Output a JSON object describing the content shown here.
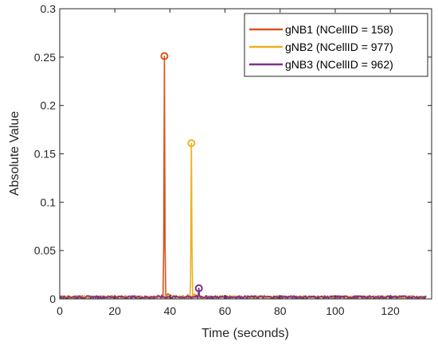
{
  "chart_data": {
    "type": "line",
    "xlabel": "Time (seconds)",
    "ylabel": "Absolute Value",
    "xlim": [
      0,
      135
    ],
    "ylim": [
      0,
      0.3
    ],
    "x_ticks": [
      0,
      20,
      40,
      60,
      80,
      100,
      120
    ],
    "y_ticks": [
      0,
      0.05,
      0.1,
      0.15,
      0.2,
      0.25,
      0.3
    ],
    "y_tick_labels": [
      "0",
      "0.05",
      "0.1",
      "0.15",
      "0.2",
      "0.25",
      "0.3"
    ],
    "grid": false,
    "legend_position": "top-right",
    "series": [
      {
        "name": "gNB1 (NCellID = 158)",
        "color": "#D95319",
        "x_range": [
          0,
          133
        ],
        "baseline": 0.002,
        "peak_x": 38.0,
        "peak_y": 0.251,
        "peak_marker": true
      },
      {
        "name": "gNB2 (NCellID = 977)",
        "color": "#EDB120",
        "x_range": [
          0,
          133
        ],
        "baseline": 0.002,
        "peak_x": 47.8,
        "peak_y": 0.161,
        "peak_marker": true
      },
      {
        "name": "gNB3 (NCellID = 962)",
        "color": "#7E2F8E",
        "x_range": [
          0,
          133
        ],
        "baseline": 0.002,
        "peak_x": 50.5,
        "peak_y": 0.011,
        "peak_marker": true
      }
    ]
  }
}
